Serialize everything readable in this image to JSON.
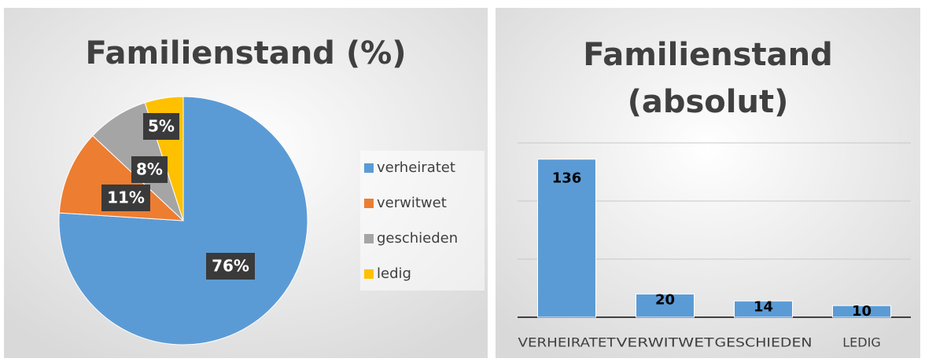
{
  "chart_data": [
    {
      "type": "pie",
      "title": "Familienstand (%)",
      "categories": [
        "verheiratet",
        "verwitwet",
        "geschieden",
        "ledig"
      ],
      "values": [
        76,
        11,
        8,
        5
      ],
      "value_labels": [
        "76%",
        "11%",
        "8%",
        "5%"
      ],
      "colors": [
        "#5b9bd5",
        "#ed7d31",
        "#a5a5a5",
        "#ffc000"
      ],
      "legend": "right"
    },
    {
      "type": "bar",
      "title": "Familienstand (absolut)",
      "categories": [
        "VERHEIRATET",
        "VERWITWET",
        "GESCHIEDEN",
        "LEDIG"
      ],
      "values": [
        136,
        20,
        14,
        10
      ],
      "color": "#5b9bd5",
      "ylim": [
        0,
        150
      ],
      "yticks": [
        0,
        50,
        100,
        150
      ],
      "grid": true
    }
  ]
}
